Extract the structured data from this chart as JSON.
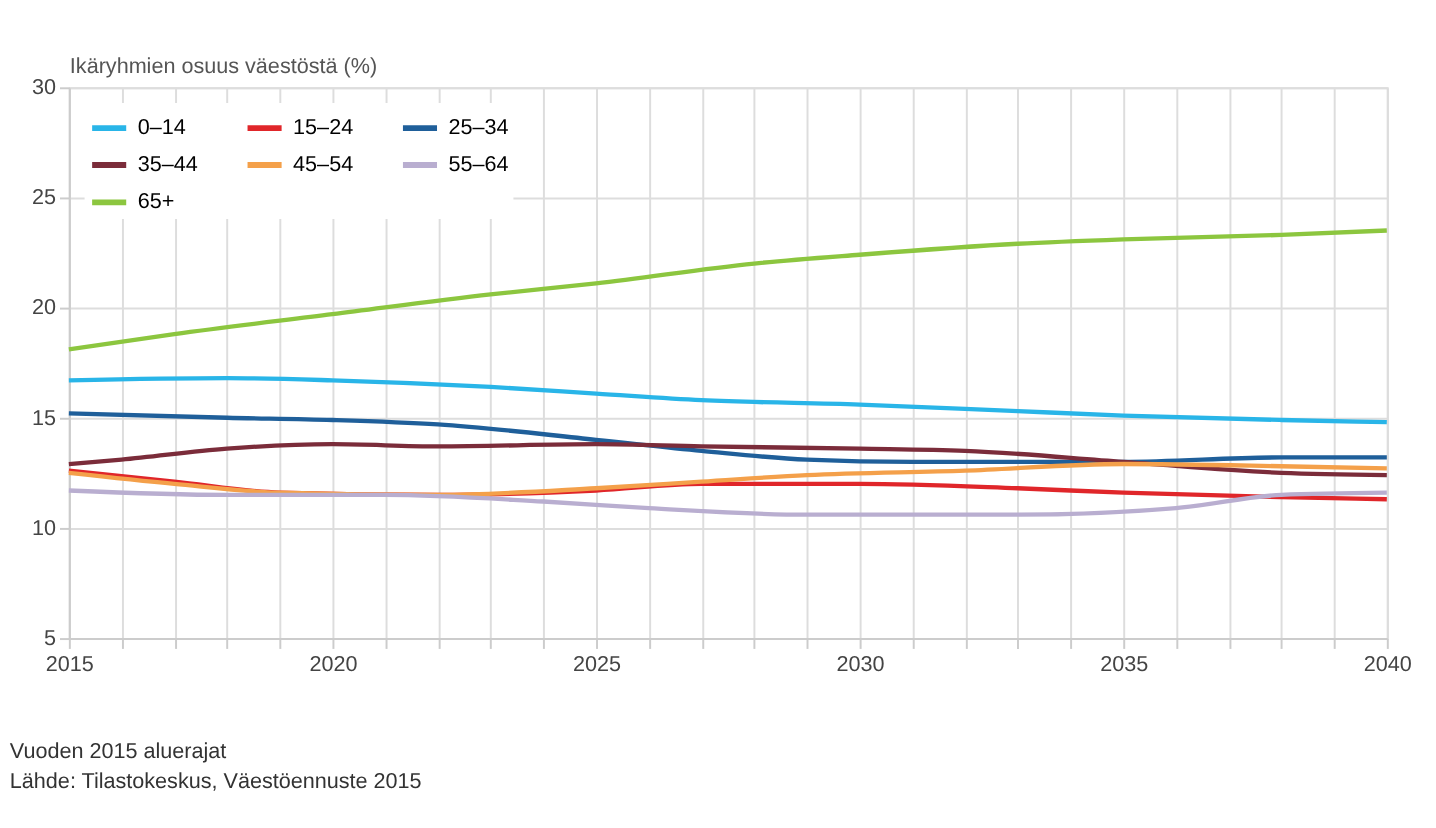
{
  "chart_data": {
    "type": "line",
    "ylabel": "Ikäryhmien osuus väestöstä (%)",
    "xlim": [
      2015,
      2040
    ],
    "xticks": [
      2015,
      {
        "value": 2016,
        "label": null
      },
      {
        "value": 2017,
        "label": null
      },
      {
        "value": 2018,
        "label": null
      },
      {
        "value": 2019,
        "label": null
      },
      2020,
      {
        "value": 2021,
        "label": null
      },
      {
        "value": 2022,
        "label": null
      },
      {
        "value": 2023,
        "label": null
      },
      {
        "value": 2024,
        "label": null
      },
      2025,
      {
        "value": 2026,
        "label": null
      },
      {
        "value": 2027,
        "label": null
      },
      {
        "value": 2028,
        "label": null
      },
      {
        "value": 2029,
        "label": null
      },
      2030,
      {
        "value": 2031,
        "label": null
      },
      {
        "value": 2032,
        "label": null
      },
      {
        "value": 2033,
        "label": null
      },
      {
        "value": 2034,
        "label": null
      },
      2035,
      {
        "value": 2036,
        "label": null
      },
      {
        "value": 2037,
        "label": null
      },
      {
        "value": 2038,
        "label": null
      },
      {
        "value": 2039,
        "label": null
      },
      2040
    ],
    "ylim": [
      5,
      30
    ],
    "yticks": [
      5,
      10,
      15,
      20,
      25,
      30
    ],
    "grid": true,
    "legend": "top left",
    "marker": "none",
    "line_style": "solid",
    "series": [
      {
        "name": "0–14",
        "color": "#29b5e8",
        "x": [
          2015,
          2018,
          2020,
          2023,
          2025,
          2027,
          2030,
          2033,
          2035,
          2038,
          2040
        ],
        "values": [
          16.7,
          16.8,
          16.7,
          16.4,
          16.1,
          15.8,
          15.6,
          15.3,
          15.1,
          14.9,
          14.8
        ]
      },
      {
        "name": "15–24",
        "color": "#e0262a",
        "x": [
          2015,
          2017,
          2019,
          2022,
          2025,
          2027,
          2030,
          2033,
          2035,
          2038,
          2040
        ],
        "values": [
          12.6,
          12.1,
          11.6,
          11.5,
          11.7,
          12.0,
          12.0,
          11.8,
          11.6,
          11.4,
          11.3
        ]
      },
      {
        "name": "25–34",
        "color": "#1f5f9a",
        "x": [
          2015,
          2018,
          2020,
          2022,
          2025,
          2027,
          2029,
          2031,
          2033,
          2035,
          2038,
          2040
        ],
        "values": [
          15.2,
          15.0,
          14.9,
          14.7,
          14.0,
          13.5,
          13.1,
          13.0,
          13.0,
          13.0,
          13.2,
          13.2
        ]
      },
      {
        "name": "35–44",
        "color": "#7b2c3a",
        "x": [
          2015,
          2016,
          2018,
          2020,
          2022,
          2025,
          2027,
          2030,
          2032,
          2035,
          2038,
          2040
        ],
        "values": [
          12.9,
          13.1,
          13.6,
          13.8,
          13.7,
          13.8,
          13.7,
          13.6,
          13.5,
          13.0,
          12.5,
          12.4
        ]
      },
      {
        "name": "45–54",
        "color": "#f4a04a",
        "x": [
          2015,
          2017,
          2019,
          2022,
          2025,
          2027,
          2029,
          2032,
          2035,
          2038,
          2040
        ],
        "values": [
          12.5,
          12.0,
          11.6,
          11.5,
          11.8,
          12.1,
          12.4,
          12.6,
          12.9,
          12.8,
          12.7
        ]
      },
      {
        "name": "55–64",
        "color": "#b9aed0",
        "x": [
          2015,
          2018,
          2021,
          2024,
          2026,
          2029,
          2033,
          2036,
          2038,
          2040
        ],
        "values": [
          11.7,
          11.5,
          11.5,
          11.2,
          10.9,
          10.6,
          10.6,
          10.9,
          11.5,
          11.6
        ]
      },
      {
        "name": "65+",
        "color": "#8cc63f",
        "x": [
          2015,
          2017,
          2020,
          2023,
          2025,
          2028,
          2030,
          2033,
          2035,
          2038,
          2040
        ],
        "values": [
          18.1,
          18.8,
          19.7,
          20.6,
          21.1,
          22.0,
          22.4,
          22.9,
          23.1,
          23.3,
          23.5
        ]
      }
    ],
    "annotations": [
      "Vuoden 2015 aluerajat",
      "Lähde: Tilastokeskus, Väestöennuste 2015"
    ]
  }
}
